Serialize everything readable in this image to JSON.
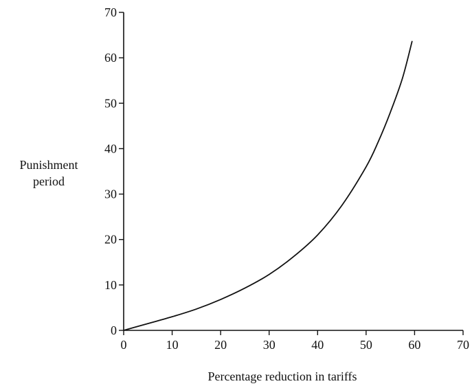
{
  "chart_data": {
    "type": "line",
    "title": "",
    "xlabel": "Percentage reduction in tariffs",
    "ylabel_lines": [
      "Punishment",
      "period"
    ],
    "xlim": [
      0,
      70
    ],
    "ylim": [
      0,
      70
    ],
    "xticks": [
      0,
      10,
      20,
      30,
      40,
      50,
      60,
      70
    ],
    "yticks": [
      0,
      10,
      20,
      30,
      40,
      50,
      60,
      70
    ],
    "grid": false,
    "series": [
      {
        "color": "#111111",
        "x": [
          0,
          5,
          10,
          15,
          20,
          25,
          30,
          35,
          40,
          45,
          50,
          52.5,
          55,
          57.5,
          59.5
        ],
        "y": [
          0,
          1.5,
          3.0,
          4.7,
          6.8,
          9.3,
          12.3,
          16.2,
          21.0,
          27.5,
          36.0,
          41.5,
          48.0,
          55.5,
          63.7
        ]
      }
    ]
  }
}
